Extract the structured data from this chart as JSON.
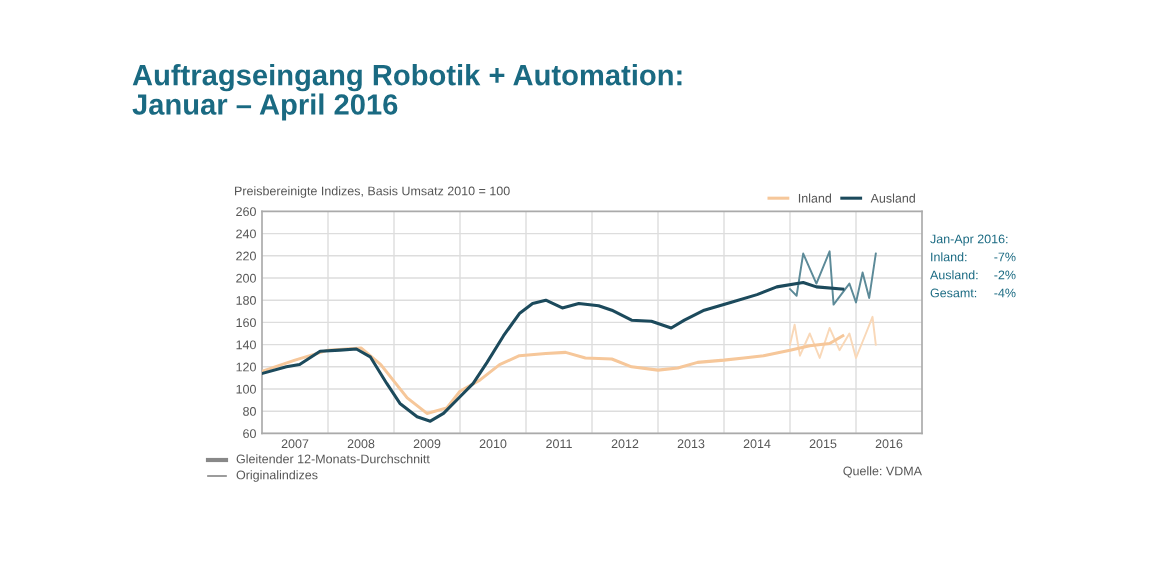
{
  "chart_data": {
    "type": "line",
    "title": "Auftragseingang Robotik + Automation:\nJanuar – April 2016",
    "subtitle": "Preisbereinigte Indizes, Basis Umsatz 2010 = 100",
    "series": [
      {
        "name": "Inland",
        "color": "#f6c79a",
        "x": [
          2007.0,
          2007.5,
          2008.0,
          2008.5,
          2008.8,
          2009.2,
          2009.5,
          2009.8,
          2010.0,
          2010.3,
          2010.6,
          2010.9,
          2011.3,
          2011.6,
          2011.9,
          2012.3,
          2012.6,
          2013.0,
          2013.3,
          2013.6,
          2014.0,
          2014.3,
          2014.6,
          2015.0,
          2015.3,
          2015.6,
          2015.8
        ],
        "values": [
          116,
          126,
          135,
          137,
          122,
          92,
          78,
          83,
          98,
          108,
          122,
          130,
          132,
          133,
          128,
          127,
          120,
          117,
          119,
          124,
          126,
          128,
          130,
          135,
          139,
          141,
          148
        ]
      },
      {
        "name": "Ausland",
        "color": "#1c4a5c",
        "x": [
          2007.0,
          2007.37,
          2007.57,
          2007.88,
          2008.18,
          2008.43,
          2008.64,
          2008.89,
          2009.09,
          2009.35,
          2009.55,
          2009.75,
          2010.0,
          2010.2,
          2010.41,
          2010.66,
          2010.9,
          2011.1,
          2011.3,
          2011.55,
          2011.8,
          2012.1,
          2012.3,
          2012.6,
          2012.9,
          2013.0,
          2013.2,
          2013.4,
          2013.7,
          2014.1,
          2014.5,
          2014.8,
          2015.2,
          2015.4,
          2015.8
        ],
        "values": [
          114,
          120,
          122,
          134,
          135,
          136,
          129,
          105,
          87,
          75,
          71,
          78,
          93,
          105,
          124,
          148,
          168,
          177,
          180,
          173,
          177,
          175,
          171,
          162,
          161,
          159,
          155,
          162,
          171,
          178,
          185,
          192,
          196,
          192,
          190
        ]
      },
      {
        "color": "#f9d8b8",
        "x": [
          2015.0,
          2015.07,
          2015.15,
          2015.3,
          2015.45,
          2015.6,
          2015.75,
          2015.9,
          2016.0,
          2016.15,
          2016.25,
          2016.3
        ],
        "values": [
          140,
          158,
          130,
          150,
          128,
          155,
          135,
          150,
          128,
          150,
          165,
          140
        ]
      },
      {
        "color": "#5c8a98",
        "x": [
          2015.0,
          2015.1,
          2015.2,
          2015.4,
          2015.6,
          2015.66,
          2015.9,
          2016.0,
          2016.1,
          2016.2,
          2016.3
        ],
        "values": [
          190,
          184,
          222,
          195,
          224,
          176,
          195,
          178,
          205,
          182,
          222
        ]
      }
    ],
    "xlim": [
      2007,
      2017
    ],
    "xticks": [
      {
        "value": 2007.5,
        "label": "2007"
      },
      {
        "value": 2008.5,
        "label": "2008"
      },
      {
        "value": 2009.5,
        "label": "2009"
      },
      {
        "value": 2010.5,
        "label": "2010"
      },
      {
        "value": 2011.5,
        "label": "2011"
      },
      {
        "value": 2012.5,
        "label": "2012"
      },
      {
        "value": 2013.5,
        "label": "2013"
      },
      {
        "value": 2014.5,
        "label": "2014"
      },
      {
        "value": 2015.5,
        "label": "2015"
      },
      {
        "value": 2016.5,
        "label": "2016"
      },
      {
        "value": 2008,
        "label": null
      },
      {
        "value": 2009,
        "label": null
      },
      {
        "value": 2010,
        "label": null
      },
      {
        "value": 2011,
        "label": null
      },
      {
        "value": 2012,
        "label": null
      },
      {
        "value": 2013,
        "label": null
      },
      {
        "value": 2014,
        "label": null
      },
      {
        "value": 2015,
        "label": null
      },
      {
        "value": 2016,
        "label": null
      }
    ],
    "ylim": [
      60,
      260
    ],
    "yticks": [
      60,
      80,
      100,
      120,
      140,
      160,
      180,
      200,
      220,
      240,
      260
    ],
    "grid": true,
    "legend": "top",
    "marker": "none",
    "line_style": "solid",
    "annotations": [
      "Gleitender 12-Monats-Durchschnitt",
      "Originalindizes",
      "Quelle: VDMA",
      "Jan-Apr 2016:",
      "Inland:",
      "-7%",
      "Ausland:",
      "-2%",
      "Gesamt:",
      "-4%"
    ]
  }
}
